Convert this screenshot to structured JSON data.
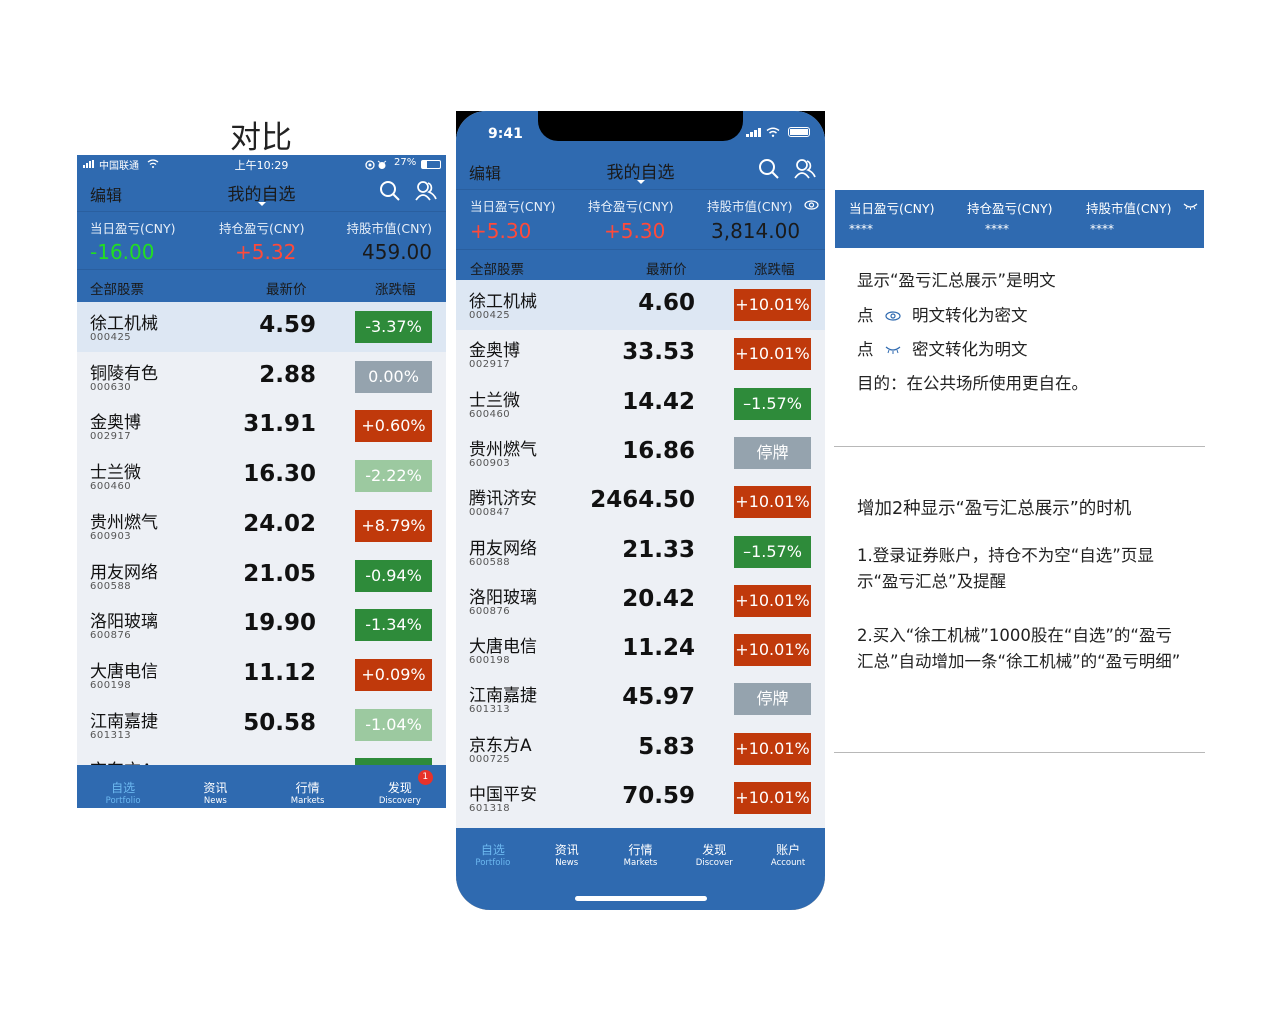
{
  "title": "对比",
  "colors": {
    "brand_blue": "#2f6ab0",
    "up_red": "#c0390b",
    "down_green": "#2e8b3a",
    "down_light_green": "#9cc9a0",
    "flat_gray": "#95a3ae",
    "num_green": "#22dd22",
    "num_red": "#ff4a3a"
  },
  "old_phone": {
    "status": {
      "carrier": "中国联通",
      "time": "上午10:29",
      "battery": "27%"
    },
    "nav": {
      "edit": "编辑",
      "title": "我的自选"
    },
    "summary": [
      {
        "label": "当日盈亏(CNY)",
        "value": "-16.00",
        "color": "#22dd22"
      },
      {
        "label": "持仓盈亏(CNY)",
        "value": "+5.32",
        "color": "#ff4a3a"
      },
      {
        "label": "持股市值(CNY)",
        "value": "459.00",
        "color": "#ffffff"
      }
    ],
    "header": {
      "all": "全部股票",
      "price": "最新价",
      "change": "涨跌幅"
    },
    "rows": [
      {
        "name": "徐工机械",
        "code": "000425",
        "price": "4.59",
        "change": "-3.37%",
        "color": "#2e8b3a"
      },
      {
        "name": "铜陵有色",
        "code": "000630",
        "price": "2.88",
        "change": "0.00%",
        "color": "#95a3ae"
      },
      {
        "name": "金奥博",
        "code": "002917",
        "price": "31.91",
        "change": "+0.60%",
        "color": "#c0390b"
      },
      {
        "name": "士兰微",
        "code": "600460",
        "price": "16.30",
        "change": "-2.22%",
        "color": "#9cc9a0"
      },
      {
        "name": "贵州燃气",
        "code": "600903",
        "price": "24.02",
        "change": "+8.79%",
        "color": "#c0390b"
      },
      {
        "name": "用友网络",
        "code": "600588",
        "price": "21.05",
        "change": "-0.94%",
        "color": "#2e8b3a"
      },
      {
        "name": "洛阳玻璃",
        "code": "600876",
        "price": "19.90",
        "change": "-1.34%",
        "color": "#2e8b3a"
      },
      {
        "name": "大唐电信",
        "code": "600198",
        "price": "11.12",
        "change": "+0.09%",
        "color": "#c0390b"
      },
      {
        "name": "江南嘉捷",
        "code": "601313",
        "price": "50.58",
        "change": "-1.04%",
        "color": "#9cc9a0"
      },
      {
        "name": "京东方A",
        "code": "",
        "price": "",
        "change": "",
        "color": "#2e8b3a"
      }
    ],
    "tabs": [
      {
        "cn": "自选",
        "en": "Portfolio"
      },
      {
        "cn": "资讯",
        "en": "News"
      },
      {
        "cn": "行情",
        "en": "Markets"
      },
      {
        "cn": "发现",
        "en": "Discovery",
        "badge": "1"
      }
    ]
  },
  "new_phone": {
    "status": {
      "time": "9:41"
    },
    "nav": {
      "edit": "编辑",
      "title": "我的自选"
    },
    "summary": [
      {
        "label": "当日盈亏(CNY)",
        "value": "+5.30",
        "color": "#ff4a3a"
      },
      {
        "label": "持仓盈亏(CNY)",
        "value": "+5.30",
        "color": "#ff4a3a"
      },
      {
        "label": "持股市值(CNY)",
        "value": "3,814.00",
        "color": "#ffffff"
      }
    ],
    "header": {
      "all": "全部股票",
      "price": "最新价",
      "change": "涨跌幅"
    },
    "rows": [
      {
        "name": "徐工机械",
        "code": "000425",
        "price": "4.60",
        "change": "+10.01%",
        "color": "#c0390b"
      },
      {
        "name": "金奥博",
        "code": "002917",
        "price": "33.53",
        "change": "+10.01%",
        "color": "#c0390b"
      },
      {
        "name": "士兰微",
        "code": "600460",
        "price": "14.42",
        "change": "–1.57%",
        "color": "#2e8b3a"
      },
      {
        "name": "贵州燃气",
        "code": "600903",
        "price": "16.86",
        "change": "停牌",
        "color": "#95a3ae"
      },
      {
        "name": "腾讯济安",
        "code": "000847",
        "price": "2464.50",
        "change": "+10.01%",
        "color": "#c0390b"
      },
      {
        "name": "用友网络",
        "code": "600588",
        "price": "21.33",
        "change": "–1.57%",
        "color": "#2e8b3a"
      },
      {
        "name": "洛阳玻璃",
        "code": "600876",
        "price": "20.42",
        "change": "+10.01%",
        "color": "#c0390b"
      },
      {
        "name": "大唐电信",
        "code": "600198",
        "price": "11.24",
        "change": "+10.01%",
        "color": "#c0390b"
      },
      {
        "name": "江南嘉捷",
        "code": "601313",
        "price": "45.97",
        "change": "停牌",
        "color": "#95a3ae"
      },
      {
        "name": "京东方A",
        "code": "000725",
        "price": "5.83",
        "change": "+10.01%",
        "color": "#c0390b"
      },
      {
        "name": "中国平安",
        "code": "601318",
        "price": "70.59",
        "change": "+10.01%",
        "color": "#c0390b"
      }
    ],
    "tabs": [
      {
        "cn": "自选",
        "en": "Portfolio"
      },
      {
        "cn": "资讯",
        "en": "News"
      },
      {
        "cn": "行情",
        "en": "Markets"
      },
      {
        "cn": "发现",
        "en": "Discover"
      },
      {
        "cn": "账户",
        "en": "Account"
      }
    ]
  },
  "masked_panel": {
    "summary": [
      {
        "label": "当日盈亏(CNY)",
        "value": "****"
      },
      {
        "label": "持仓盈亏(CNY)",
        "value": "****"
      },
      {
        "label": "持股市值(CNY)",
        "value": "****"
      }
    ]
  },
  "notes": {
    "line1": "显示“盈亏汇总展示”是明文",
    "line2_prefix": "点",
    "line2_text": "明文转化为密文",
    "line3_prefix": "点",
    "line3_text": "密文转化为明文",
    "line4": "目的：在公共场所使用更自在。",
    "section2_title": "增加2种显示“盈亏汇总展示”的时机",
    "item1": "1.登录证券账户，持仓不为空“自选”页显示“盈亏汇总”及提醒",
    "item2": "2.买入“徐工机械”1000股在“自选”的“盈亏汇总”自动增加一条“徐工机械”的“盈亏明细”"
  }
}
